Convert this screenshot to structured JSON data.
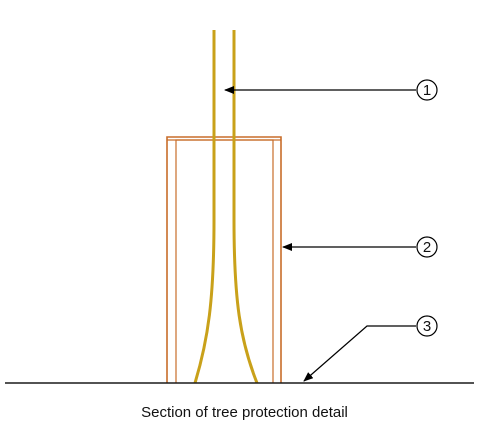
{
  "diagram": {
    "caption": "Section of tree protection detail",
    "callouts": [
      {
        "number": "1",
        "target": "tree trunk"
      },
      {
        "number": "2",
        "target": "protective guard"
      },
      {
        "number": "3",
        "target": "ground line"
      }
    ]
  },
  "colors": {
    "trunk": "#c9a11a",
    "guard": "#c86d2a",
    "ground": "#1a1a1a",
    "leader": "#000000"
  }
}
